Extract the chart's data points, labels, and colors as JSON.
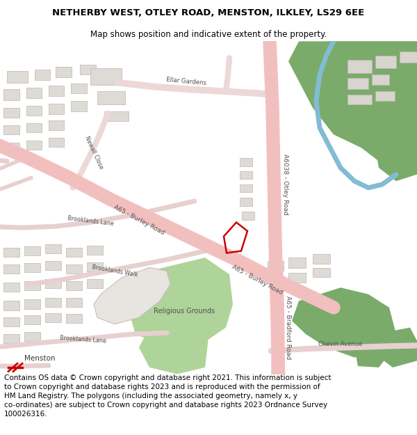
{
  "title_line1": "NETHERBY WEST, OTLEY ROAD, MENSTON, ILKLEY, LS29 6EE",
  "title_line2": "Map shows position and indicative extent of the property.",
  "footer_text": "Contains OS data © Crown copyright and database right 2021. This information is subject to Crown copyright and database rights 2023 and is reproduced with the permission of HM Land Registry. The polygons (including the associated geometry, namely x, y co-ordinates) are subject to Crown copyright and database rights 2023 Ordnance Survey 100026316.",
  "bg_color": "#ffffff",
  "map_bg": "#f8f8f8",
  "road_color_main": "#f2bfbf",
  "road_color_minor": "#e8d4d4",
  "green_dark": "#7aab6a",
  "green_light": "#afd49a",
  "blue_color": "#82bcd4",
  "building_color": "#dedad6",
  "building_stroke": "#c4c0bc",
  "property_color": "#cc0000",
  "label_color": "#505050",
  "label_fontsize": 6.5
}
